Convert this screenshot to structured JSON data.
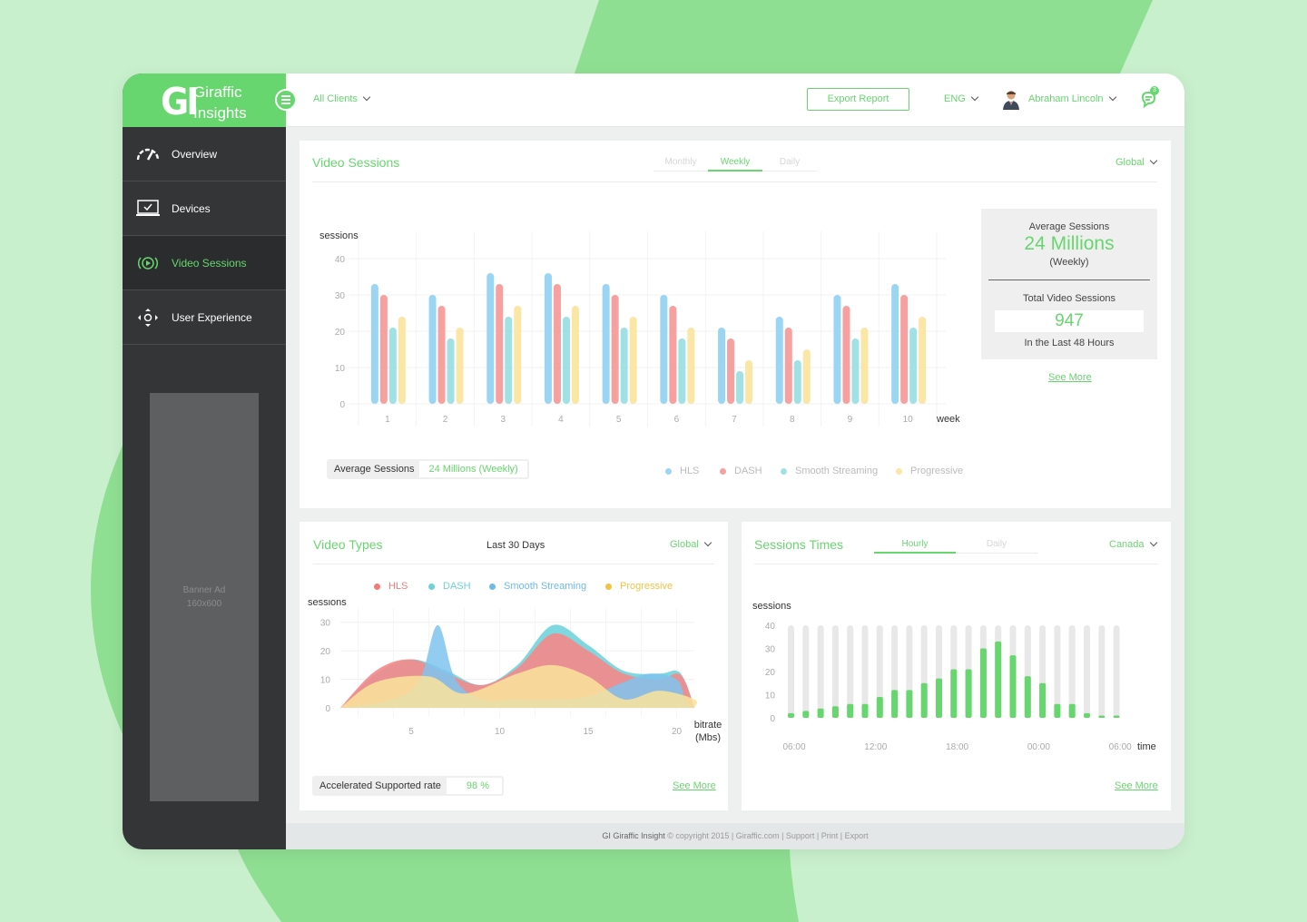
{
  "colors": {
    "accent": "#67d66e",
    "sidebar": "#333536",
    "hls": "#9ad5f3",
    "dash": "#f6a0a0",
    "smooth": "#9fe1e5",
    "progressive": "#fbe6a6"
  },
  "brand": {
    "mark": "GI",
    "line1": "Giraffic",
    "line2": "Insights"
  },
  "sidebar": {
    "items": [
      {
        "label": "Overview",
        "icon": "gauge-icon"
      },
      {
        "label": "Devices",
        "icon": "laptop-check-icon"
      },
      {
        "label": "Video Sessions",
        "icon": "play-circle-icon"
      },
      {
        "label": "User Experience",
        "icon": "move-arrows-icon"
      }
    ],
    "active": "Video Sessions",
    "banner_line1": "Banner Ad",
    "banner_line2": "160x600"
  },
  "topbar": {
    "clients": "All Clients",
    "export": "Export Report",
    "lang": "ENG",
    "user": "Abraham Lincoln",
    "notif_count": "3"
  },
  "video_sessions": {
    "title": "Video Sessions",
    "tabs": [
      "Monthly",
      "Weekly",
      "Daily"
    ],
    "active_tab": "Weekly",
    "region": "Global",
    "stats": {
      "avg_label": "Average Sessions",
      "avg_value": "24 Millions",
      "avg_period": "(Weekly)",
      "total_label": "Total Video Sessions",
      "total_value": "947",
      "total_period": "In the Last 48 Hours",
      "see_more": "See More"
    },
    "pill_label": "Average Sessions",
    "pill_value": "24 Millions (Weekly)",
    "legend": [
      "HLS",
      "DASH",
      "Smooth Streaming",
      "Progressive"
    ]
  },
  "video_types": {
    "title": "Video Types",
    "period": "Last 30 Days",
    "region": "Global",
    "legend": [
      "HLS",
      "DASH",
      "Smooth Streaming",
      "Progressive"
    ],
    "pill_label": "Accelerated Supported rate",
    "pill_value": "98 %",
    "see_more": "See More"
  },
  "sessions_times": {
    "title": "Sessions Times",
    "tabs": [
      "Hourly",
      "Daily"
    ],
    "active_tab": "Hourly",
    "region": "Canada",
    "see_more": "See More"
  },
  "footer": {
    "brand": "GI Giraffic Insight",
    "text": "© copyright 2015  |  Giraffic.com  |  Support  |  Print  |  Export"
  },
  "chart_data": [
    {
      "type": "bar",
      "ylabel": "sessions",
      "xlabel": "week",
      "ylim": [
        0,
        40
      ],
      "yticks": [
        0,
        10,
        20,
        30,
        40
      ],
      "categories": [
        "1",
        "2",
        "3",
        "4",
        "5",
        "6",
        "7",
        "8",
        "9",
        "10"
      ],
      "series": [
        {
          "name": "HLS",
          "values": [
            33,
            30,
            36,
            36,
            33,
            30,
            21,
            24,
            30,
            33
          ]
        },
        {
          "name": "DASH",
          "values": [
            30,
            27,
            33,
            33,
            30,
            27,
            18,
            21,
            27,
            30
          ]
        },
        {
          "name": "Smooth Streaming",
          "values": [
            21,
            18,
            24,
            24,
            21,
            18,
            9,
            12,
            18,
            21
          ]
        },
        {
          "name": "Progressive",
          "values": [
            24,
            21,
            27,
            27,
            24,
            21,
            12,
            15,
            21,
            24
          ]
        }
      ]
    },
    {
      "type": "area",
      "ylabel": "sessions",
      "xlabel": "bitrate (Mbs)",
      "xlim": [
        1,
        21
      ],
      "ylim": [
        0,
        35
      ],
      "xticks": [
        5,
        10,
        15,
        20
      ],
      "yticks": [
        0,
        10,
        20,
        30
      ],
      "series": [
        {
          "name": "Smooth Streaming",
          "points": [
            [
              1,
              0
            ],
            [
              3,
              12
            ],
            [
              5,
              17
            ],
            [
              7,
              13
            ],
            [
              9,
              8
            ],
            [
              11,
              15
            ],
            [
              13,
              29
            ],
            [
              15,
              22
            ],
            [
              17,
              13
            ],
            [
              19,
              12
            ],
            [
              20,
              13
            ],
            [
              20.5,
              9
            ],
            [
              21,
              0
            ]
          ]
        },
        {
          "name": "DASH",
          "points": [
            [
              1,
              0
            ],
            [
              3,
              13
            ],
            [
              5,
              17
            ],
            [
              7,
              12
            ],
            [
              9,
              8
            ],
            [
              11,
              14
            ],
            [
              13,
              26
            ],
            [
              15,
              20
            ],
            [
              17,
              12
            ],
            [
              19,
              10
            ],
            [
              20,
              12
            ],
            [
              20.5,
              9
            ],
            [
              21,
              0
            ]
          ]
        },
        {
          "name": "HLS",
          "points": [
            [
              1,
              0
            ],
            [
              4,
              3
            ],
            [
              5.5,
              10
            ],
            [
              6.5,
              29
            ],
            [
              7.5,
              10
            ],
            [
              9,
              3
            ],
            [
              11,
              3
            ],
            [
              13,
              3
            ],
            [
              15,
              4
            ],
            [
              17,
              9
            ],
            [
              18.5,
              12
            ],
            [
              20,
              10
            ],
            [
              20.5,
              3
            ],
            [
              21,
              0
            ]
          ]
        },
        {
          "name": "Progressive",
          "points": [
            [
              1,
              0
            ],
            [
              3,
              9
            ],
            [
              6,
              11
            ],
            [
              8,
              5
            ],
            [
              11,
              12
            ],
            [
              13,
              15
            ],
            [
              15,
              11
            ],
            [
              17,
              3
            ],
            [
              19,
              6
            ],
            [
              21,
              3
            ],
            [
              21,
              0
            ]
          ]
        }
      ]
    },
    {
      "type": "bar",
      "ylabel": "sessions",
      "xlabel": "time",
      "ylim": [
        0,
        40
      ],
      "yticks": [
        0,
        10,
        20,
        30,
        40
      ],
      "xtick_labels": [
        "06:00",
        "12:00",
        "18:00",
        "00:00",
        "06:00"
      ],
      "capacity": 40,
      "values": [
        2,
        3,
        4,
        5,
        6,
        6,
        9,
        12,
        12,
        15,
        17,
        21,
        21,
        30,
        33,
        27,
        18,
        15,
        6,
        6,
        2,
        1,
        1
      ]
    }
  ]
}
